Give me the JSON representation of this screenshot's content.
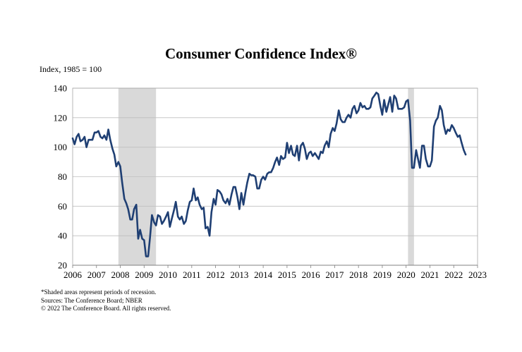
{
  "chart_data": {
    "type": "line",
    "title": "Consumer Confidence Index®",
    "ylabel": "Index, 1985 = 100",
    "xlabel": "",
    "ylim": [
      20,
      140
    ],
    "xlim": [
      2006,
      2023
    ],
    "yticks": [
      20,
      40,
      60,
      80,
      100,
      120,
      140
    ],
    "xticks": [
      "2006",
      "2007",
      "2008",
      "2009",
      "2010",
      "2011",
      "2012",
      "2013",
      "2014",
      "2015",
      "2016",
      "2017",
      "2018",
      "2019",
      "2020",
      "2021",
      "2022",
      "2023"
    ],
    "grid": "horizontal",
    "recessions": [
      [
        2007.92,
        2009.5
      ],
      [
        2020.08,
        2020.33
      ]
    ],
    "line_color": "#1f3f73",
    "recession_color": "#d9d9d9",
    "series": [
      {
        "name": "Consumer Confidence Index",
        "x": [
          2006.0,
          2006.08,
          2006.17,
          2006.25,
          2006.33,
          2006.42,
          2006.5,
          2006.58,
          2006.67,
          2006.75,
          2006.83,
          2006.92,
          2007.0,
          2007.08,
          2007.17,
          2007.25,
          2007.33,
          2007.42,
          2007.5,
          2007.58,
          2007.67,
          2007.75,
          2007.83,
          2007.92,
          2008.0,
          2008.08,
          2008.17,
          2008.25,
          2008.33,
          2008.42,
          2008.5,
          2008.58,
          2008.67,
          2008.75,
          2008.83,
          2008.92,
          2009.0,
          2009.08,
          2009.17,
          2009.25,
          2009.33,
          2009.42,
          2009.5,
          2009.58,
          2009.67,
          2009.75,
          2009.83,
          2009.92,
          2010.0,
          2010.08,
          2010.17,
          2010.25,
          2010.33,
          2010.42,
          2010.5,
          2010.58,
          2010.67,
          2010.75,
          2010.83,
          2010.92,
          2011.0,
          2011.08,
          2011.17,
          2011.25,
          2011.33,
          2011.42,
          2011.5,
          2011.58,
          2011.67,
          2011.75,
          2011.83,
          2011.92,
          2012.0,
          2012.08,
          2012.17,
          2012.25,
          2012.33,
          2012.42,
          2012.5,
          2012.58,
          2012.67,
          2012.75,
          2012.83,
          2012.92,
          2013.0,
          2013.08,
          2013.17,
          2013.25,
          2013.33,
          2013.42,
          2013.5,
          2013.58,
          2013.67,
          2013.75,
          2013.83,
          2013.92,
          2014.0,
          2014.08,
          2014.17,
          2014.25,
          2014.33,
          2014.42,
          2014.5,
          2014.58,
          2014.67,
          2014.75,
          2014.83,
          2014.92,
          2015.0,
          2015.08,
          2015.17,
          2015.25,
          2015.33,
          2015.42,
          2015.5,
          2015.58,
          2015.67,
          2015.75,
          2015.83,
          2015.92,
          2016.0,
          2016.08,
          2016.17,
          2016.25,
          2016.33,
          2016.42,
          2016.5,
          2016.58,
          2016.67,
          2016.75,
          2016.83,
          2016.92,
          2017.0,
          2017.08,
          2017.17,
          2017.25,
          2017.33,
          2017.42,
          2017.5,
          2017.58,
          2017.67,
          2017.75,
          2017.83,
          2017.92,
          2018.0,
          2018.08,
          2018.17,
          2018.25,
          2018.33,
          2018.42,
          2018.5,
          2018.58,
          2018.67,
          2018.75,
          2018.83,
          2018.92,
          2019.0,
          2019.08,
          2019.17,
          2019.25,
          2019.33,
          2019.42,
          2019.5,
          2019.58,
          2019.67,
          2019.75,
          2019.83,
          2019.92,
          2020.0,
          2020.08,
          2020.17,
          2020.25,
          2020.33,
          2020.42,
          2020.5,
          2020.58,
          2020.67,
          2020.75,
          2020.83,
          2020.92,
          2021.0,
          2021.08,
          2021.17,
          2021.25,
          2021.33,
          2021.42,
          2021.5,
          2021.58,
          2021.67,
          2021.75,
          2021.83,
          2021.92,
          2022.0,
          2022.08,
          2022.17,
          2022.25,
          2022.33,
          2022.42,
          2022.5
        ],
        "values": [
          106,
          102,
          107,
          109,
          104,
          105,
          107,
          100,
          105,
          105,
          105,
          110,
          110,
          111,
          107,
          106,
          108,
          105,
          112,
          105,
          99,
          95,
          87,
          90,
          87,
          76,
          65,
          62,
          58,
          51,
          51,
          58,
          61,
          38,
          44,
          38,
          37,
          26,
          26,
          39,
          54,
          49,
          47,
          54,
          53,
          48,
          50,
          53,
          56,
          46,
          52,
          57,
          63,
          53,
          51,
          53,
          48,
          50,
          57,
          63,
          64,
          72,
          64,
          66,
          61,
          58,
          59,
          45,
          46,
          40,
          56,
          65,
          61,
          71,
          70,
          68,
          64,
          62,
          65,
          61,
          68,
          73,
          73,
          66,
          58,
          69,
          61,
          69,
          76,
          82,
          81,
          81,
          80,
          72,
          72,
          78,
          80,
          78,
          82,
          83,
          83,
          86,
          90,
          93,
          88,
          94,
          92,
          93,
          103,
          96,
          101,
          95,
          94,
          101,
          91,
          101,
          103,
          99,
          92,
          96,
          97,
          94,
          96,
          94,
          92,
          97,
          96,
          101,
          104,
          100,
          109,
          113,
          111,
          116,
          125,
          119,
          117,
          117,
          120,
          122,
          120,
          126,
          128,
          123,
          125,
          130,
          127,
          128,
          126,
          126,
          127,
          133,
          135,
          137,
          136,
          128,
          122,
          132,
          124,
          129,
          134,
          124,
          135,
          133,
          126,
          126,
          126,
          127,
          131,
          132,
          118,
          86,
          86,
          98,
          92,
          86,
          101,
          101,
          92,
          87,
          87,
          91,
          114,
          118,
          120,
          128,
          125,
          115,
          109,
          112,
          111,
          115,
          113,
          110,
          107,
          108,
          103,
          98,
          95
        ]
      }
    ]
  },
  "notes": {
    "line1": "*Shaded areas represent periods of recession.",
    "line2": "Sources: The Conference Board; NBER",
    "line3": "© 2022 The Conference Board. All rights reserved."
  }
}
